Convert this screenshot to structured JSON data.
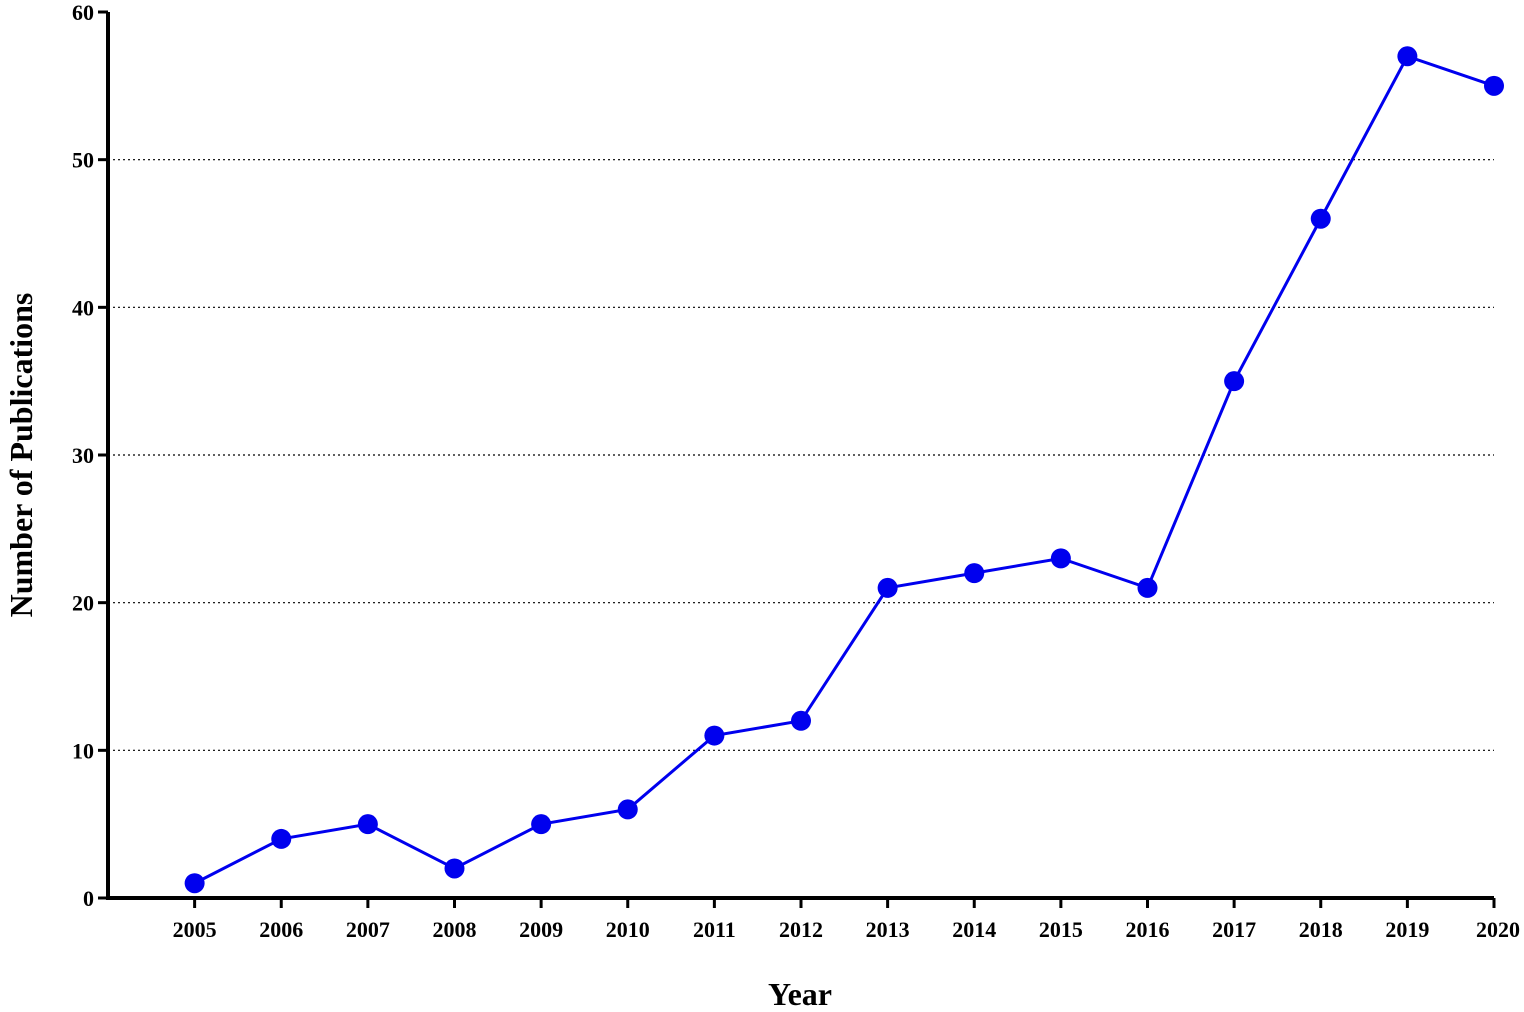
{
  "chart_data": {
    "type": "line",
    "xlabel": "Year",
    "ylabel": "Number of Publications",
    "x": [
      2005,
      2006,
      2007,
      2008,
      2009,
      2010,
      2011,
      2012,
      2013,
      2014,
      2015,
      2016,
      2017,
      2018,
      2019,
      2020
    ],
    "x_tick_labels": [
      "2005",
      "2006",
      "2007",
      "2008",
      "2009",
      "2010",
      "2011",
      "2012",
      "2013",
      "2014",
      "2015",
      "2016",
      "2017",
      "2018",
      "2019",
      "2020"
    ],
    "series": [
      {
        "values": [
          1,
          4,
          5,
          2,
          5,
          6,
          11,
          12,
          21,
          22,
          23,
          21,
          35,
          46,
          57,
          55
        ],
        "color": "#0000ee"
      }
    ],
    "ylim": [
      0,
      60
    ],
    "y_ticks": [
      0,
      10,
      20,
      30,
      40,
      50,
      60
    ],
    "y_tick_labels": [
      "0",
      "10",
      "20",
      "30",
      "40",
      "50",
      "60"
    ],
    "grid": "horizontal-dotted",
    "legend": "none"
  }
}
